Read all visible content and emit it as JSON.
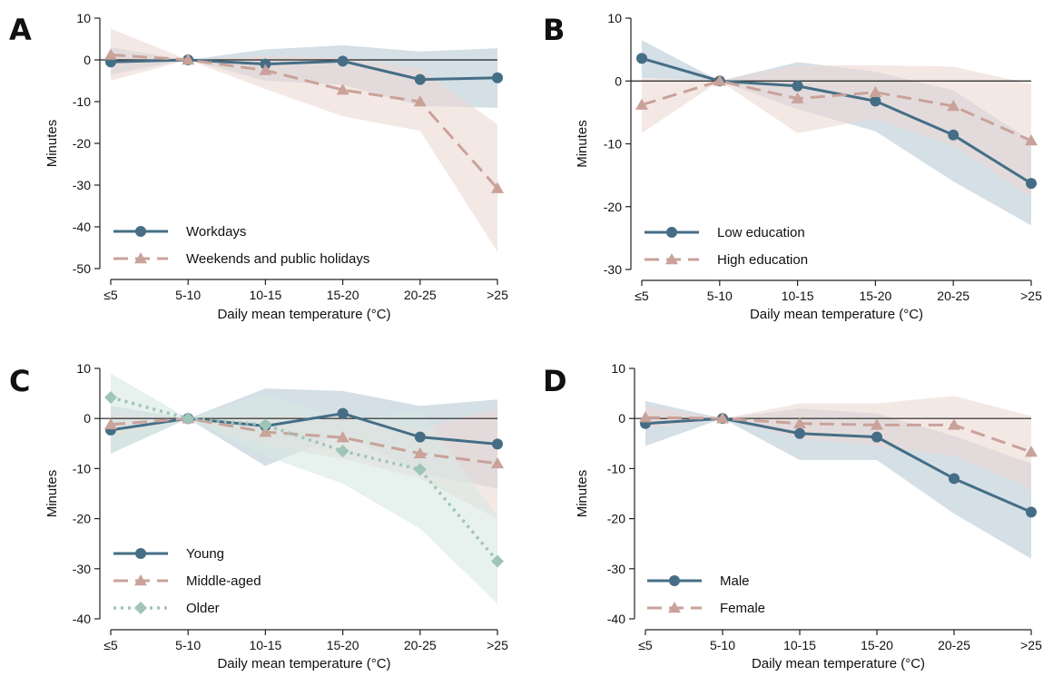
{
  "colors": {
    "blue": "#456e86",
    "pink": "#c9a29a",
    "green": "#9fc4b9",
    "blue_band": "#b9c9d6",
    "pink_band": "#ecd8d4",
    "green_band": "#d7e7e2"
  },
  "chart_data": [
    {
      "type": "line",
      "panel_letter": "A",
      "categories": [
        "≤5",
        "5-10",
        "10-15",
        "15-20",
        "20-25",
        ">25"
      ],
      "xlabel": "Daily mean temperature (°C)",
      "ylabel": "Minutes",
      "ylim": [
        -50,
        10
      ],
      "yticks": [
        10,
        0,
        -10,
        -20,
        -30,
        -40,
        -50
      ],
      "legend_position": "bottom-left",
      "series": [
        {
          "name": "Workdays",
          "color": "blue",
          "marker": "circle",
          "dash": "solid",
          "values": [
            -0.5,
            0,
            -1,
            -0.3,
            -4.7,
            -4.3
          ],
          "ci_low": [
            -3.5,
            0,
            -5,
            -6,
            -11,
            -11.5
          ],
          "ci_high": [
            3,
            0,
            2.5,
            3.5,
            2,
            2.8
          ]
        },
        {
          "name": "Weekends and public holidays",
          "color": "pink",
          "marker": "triangle",
          "dash": "dashed",
          "values": [
            1.2,
            0,
            -2.5,
            -7.2,
            -10,
            -30.8
          ],
          "ci_low": [
            -5,
            0,
            -7,
            -13.5,
            -17,
            -46
          ],
          "ci_high": [
            7.5,
            0,
            1,
            0.5,
            -2,
            -15.5
          ]
        }
      ]
    },
    {
      "type": "line",
      "panel_letter": "B",
      "categories": [
        "≤5",
        "5-10",
        "10-15",
        "15-20",
        "20-25",
        ">25"
      ],
      "xlabel": "Daily mean temperature (°C)",
      "ylabel": "Minutes",
      "ylim": [
        -30,
        10
      ],
      "yticks": [
        10,
        0,
        -10,
        -20,
        -30
      ],
      "legend_position": "bottom-left",
      "series": [
        {
          "name": "Low education",
          "color": "blue",
          "marker": "circle",
          "dash": "solid",
          "values": [
            3.6,
            0,
            -0.8,
            -3.2,
            -8.6,
            -16.3
          ],
          "ci_low": [
            0.5,
            0,
            -4.5,
            -8,
            -16,
            -23
          ],
          "ci_high": [
            6.5,
            0,
            3,
            1.5,
            -1.5,
            -9.5
          ]
        },
        {
          "name": "High education",
          "color": "pink",
          "marker": "triangle",
          "dash": "dashed",
          "values": [
            -3.8,
            0,
            -2.8,
            -1.8,
            -4,
            -9.5
          ],
          "ci_low": [
            -8.3,
            0,
            -8.3,
            -6,
            -10.3,
            -18.5
          ],
          "ci_high": [
            0.5,
            0,
            2.5,
            2.5,
            2.3,
            -0.5
          ]
        }
      ]
    },
    {
      "type": "line",
      "panel_letter": "C",
      "categories": [
        "≤5",
        "5-10",
        "10-15",
        "15-20",
        "20-25",
        ">25"
      ],
      "xlabel": "Daily mean temperature (°C)",
      "ylabel": "Minutes",
      "ylim": [
        -40,
        10
      ],
      "yticks": [
        10,
        0,
        -10,
        -20,
        -30,
        -40
      ],
      "legend_position": "bottom-left",
      "series": [
        {
          "name": "Young",
          "color": "blue",
          "marker": "circle",
          "dash": "solid",
          "values": [
            -2.3,
            0,
            -1.5,
            1,
            -3.7,
            -5.1
          ],
          "ci_low": [
            -7,
            0,
            -9.5,
            -3,
            -11,
            -14
          ],
          "ci_high": [
            2.5,
            0,
            6,
            5.5,
            2.5,
            3.8
          ]
        },
        {
          "name": "Middle-aged",
          "color": "pink",
          "marker": "triangle",
          "dash": "dashed",
          "values": [
            -1.2,
            0,
            -2.7,
            -3.8,
            -7,
            -9
          ],
          "ci_low": [
            -4,
            0,
            -5.5,
            -8,
            -12,
            -20
          ],
          "ci_high": [
            1.5,
            0,
            0.5,
            0.5,
            -2,
            2
          ]
        },
        {
          "name": "Older",
          "color": "green",
          "marker": "diamond",
          "dash": "dotted",
          "values": [
            4.2,
            0,
            -1.3,
            -6.5,
            -10.2,
            -28.5
          ],
          "ci_low": [
            -7,
            0,
            -7.5,
            -13,
            -22,
            -37
          ],
          "ci_high": [
            9,
            0,
            5,
            -0.5,
            1.5,
            -19.5
          ]
        }
      ]
    },
    {
      "type": "line",
      "panel_letter": "D",
      "categories": [
        "≤5",
        "5-10",
        "10-15",
        "15-20",
        "20-25",
        ">25"
      ],
      "xlabel": "Daily mean temperature (°C)",
      "ylabel": "Minutes",
      "ylim": [
        -40,
        10
      ],
      "yticks": [
        10,
        0,
        -10,
        -20,
        -30,
        -40
      ],
      "legend_position": "bottom-left",
      "series": [
        {
          "name": "Male",
          "color": "blue",
          "marker": "circle",
          "dash": "solid",
          "values": [
            -1,
            0,
            -3,
            -3.7,
            -12,
            -18.7
          ],
          "ci_low": [
            -5.5,
            0,
            -8.3,
            -8.3,
            -19,
            -28
          ],
          "ci_high": [
            3.5,
            0,
            2,
            1,
            -3.5,
            -9
          ]
        },
        {
          "name": "Female",
          "color": "pink",
          "marker": "triangle",
          "dash": "dashed",
          "values": [
            0.2,
            0,
            -1,
            -1.3,
            -1.3,
            -6.7
          ],
          "ci_low": [
            -2,
            0,
            -4,
            -5.5,
            -7.5,
            -14
          ],
          "ci_high": [
            2.5,
            0,
            3,
            3,
            4.5,
            0.5
          ]
        }
      ]
    }
  ]
}
